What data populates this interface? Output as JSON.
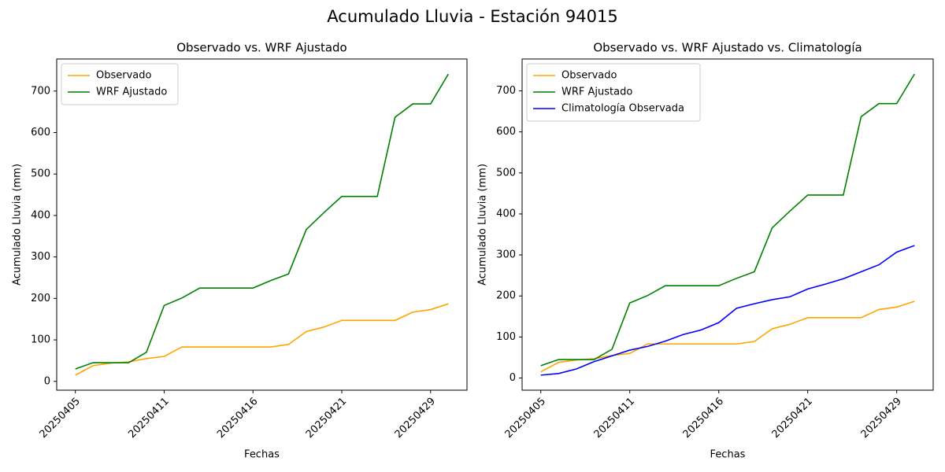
{
  "title": "Acumulado Lluvia - Estación 94015",
  "chart_data": [
    {
      "type": "line",
      "title": "Observado vs. WRF Ajustado",
      "x_label": "Fechas",
      "y_label": "Acumulado Lluvia (mm)",
      "categories": [
        "20250405",
        null,
        null,
        null,
        null,
        "20250411",
        null,
        null,
        null,
        null,
        "20250416",
        null,
        null,
        null,
        null,
        "20250421",
        null,
        null,
        null,
        null,
        "20250429",
        null
      ],
      "series": [
        {
          "name": "Observado",
          "color": "orange",
          "values": [
            15,
            38,
            44,
            47,
            55,
            60,
            83,
            83,
            83,
            83,
            83,
            83,
            89,
            120,
            131,
            147,
            147,
            147,
            147,
            167,
            173,
            187
          ]
        },
        {
          "name": "WRF Ajustado",
          "color": "green",
          "values": [
            30,
            45,
            45,
            45,
            70,
            183,
            201,
            225,
            225,
            225,
            225,
            243,
            259,
            366,
            407,
            446,
            446,
            446,
            637,
            669,
            669,
            741
          ]
        }
      ],
      "ylim": [
        -21.3,
        777.3
      ],
      "yticks": [
        0,
        100,
        200,
        300,
        400,
        500,
        600,
        700
      ],
      "legend": "upper left"
    },
    {
      "type": "line",
      "title": "Observado vs. WRF Ajustado vs. Climatología",
      "x_label": "Fechas",
      "y_label": "Acumulado Lluvia (mm)",
      "categories": [
        "20250405",
        null,
        null,
        null,
        null,
        "20250411",
        null,
        null,
        null,
        null,
        "20250416",
        null,
        null,
        null,
        null,
        "20250421",
        null,
        null,
        null,
        null,
        "20250429",
        null
      ],
      "series": [
        {
          "name": "Observado",
          "color": "orange",
          "values": [
            15,
            38,
            44,
            47,
            55,
            60,
            83,
            83,
            83,
            83,
            83,
            83,
            89,
            120,
            131,
            147,
            147,
            147,
            147,
            167,
            173,
            187
          ]
        },
        {
          "name": "WRF Ajustado",
          "color": "green",
          "values": [
            30,
            45,
            45,
            45,
            70,
            183,
            201,
            225,
            225,
            225,
            225,
            243,
            259,
            366,
            407,
            446,
            446,
            446,
            637,
            669,
            669,
            741
          ]
        },
        {
          "name": "Climatología Observada",
          "color": "blue",
          "values": [
            7,
            11,
            22,
            40,
            54,
            68,
            77,
            90,
            106,
            117,
            135,
            170,
            181,
            191,
            198,
            217,
            229,
            242,
            259,
            276,
            307,
            323
          ]
        }
      ],
      "ylim": [
        -29.7,
        777.7
      ],
      "yticks": [
        0,
        100,
        200,
        300,
        400,
        500,
        600,
        700
      ],
      "legend": "upper left"
    }
  ]
}
